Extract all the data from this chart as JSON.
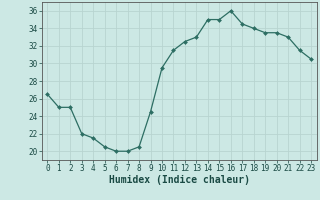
{
  "x": [
    0,
    1,
    2,
    3,
    4,
    5,
    6,
    7,
    8,
    9,
    10,
    11,
    12,
    13,
    14,
    15,
    16,
    17,
    18,
    19,
    20,
    21,
    22,
    23
  ],
  "y": [
    26.5,
    25.0,
    25.0,
    22.0,
    21.5,
    20.5,
    20.0,
    20.0,
    20.5,
    24.5,
    29.5,
    31.5,
    32.5,
    33.0,
    35.0,
    35.0,
    36.0,
    34.5,
    34.0,
    33.5,
    33.5,
    33.0,
    31.5,
    30.5
  ],
  "xlabel": "Humidex (Indice chaleur)",
  "ylim": [
    19,
    37
  ],
  "yticks": [
    20,
    22,
    24,
    26,
    28,
    30,
    32,
    34,
    36
  ],
  "xticks": [
    0,
    1,
    2,
    3,
    4,
    5,
    6,
    7,
    8,
    9,
    10,
    11,
    12,
    13,
    14,
    15,
    16,
    17,
    18,
    19,
    20,
    21,
    22,
    23
  ],
  "xtick_labels": [
    "0",
    "1",
    "2",
    "3",
    "4",
    "5",
    "6",
    "7",
    "8",
    "9",
    "10",
    "11",
    "12",
    "13",
    "14",
    "15",
    "16",
    "17",
    "18",
    "19",
    "20",
    "21",
    "22",
    "23"
  ],
  "line_color": "#2d6e63",
  "marker": "D",
  "marker_size": 2.0,
  "background_color": "#cce8e4",
  "grid_color": "#b8d4d0",
  "fig_bg": "#cce8e4",
  "tick_fontsize": 5.5,
  "xlabel_fontsize": 7.0,
  "spine_color": "#555555"
}
